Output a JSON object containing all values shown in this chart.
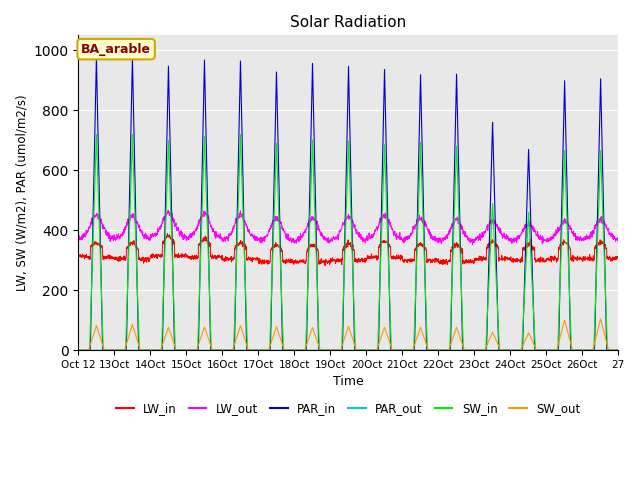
{
  "title": "Solar Radiation",
  "ylabel": "LW, SW (W/m2), PAR (umol/m2/s)",
  "xlabel": "Time",
  "annotation": "BA_arable",
  "ylim": [
    0,
    1050
  ],
  "background_color": "#e8e8e8",
  "colors": {
    "LW_in": "#ff0000",
    "LW_out": "#ff00ff",
    "PAR_in": "#0000cc",
    "PAR_out": "#00cccc",
    "SW_in": "#00ee00",
    "SW_out": "#ff9900"
  },
  "n_days": 15,
  "start_day": 12,
  "samples_per_day": 144,
  "PAR_peaks": [
    975,
    975,
    948,
    965,
    965,
    930,
    955,
    945,
    935,
    920,
    920,
    760,
    670,
    900,
    905
  ],
  "SW_peaks": [
    720,
    715,
    700,
    715,
    720,
    690,
    700,
    695,
    685,
    690,
    680,
    490,
    460,
    665,
    665
  ],
  "SW_out_peaks": [
    82,
    86,
    76,
    78,
    82,
    78,
    76,
    80,
    76,
    76,
    76,
    60,
    58,
    100,
    105
  ],
  "LW_in_day_vals": [
    360,
    355,
    380,
    370,
    360,
    350,
    350,
    355,
    365,
    355,
    350,
    360,
    355,
    360,
    360
  ],
  "LW_in_night_vals": [
    310,
    305,
    315,
    310,
    305,
    295,
    295,
    300,
    310,
    300,
    295,
    305,
    300,
    305,
    305
  ],
  "LW_out_day_vals": [
    450,
    445,
    460,
    455,
    450,
    440,
    440,
    445,
    450,
    440,
    435,
    430,
    420,
    430,
    435
  ],
  "LW_out_night_vals": [
    375,
    372,
    378,
    375,
    370,
    365,
    365,
    368,
    372,
    368,
    363,
    370,
    365,
    368,
    370
  ],
  "figsize": [
    6.4,
    4.8
  ],
  "dpi": 100,
  "tick_labels": [
    "Oct 12",
    "13Oct",
    "14Oct",
    "15Oct",
    "16Oct",
    "17Oct",
    "18Oct",
    "19Oct",
    "20Oct",
    "21Oct",
    "22Oct",
    "23Oct",
    "24Oct",
    "25Oct",
    "26Oct",
    "27"
  ]
}
